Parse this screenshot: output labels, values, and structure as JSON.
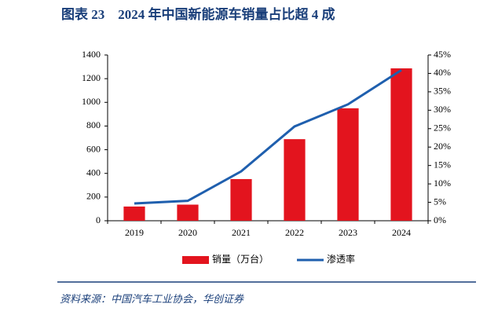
{
  "chart_data": {
    "type": "bar",
    "title": "图表 23　2024 年中国新能源车销量占比超 4 成",
    "source": "资料来源：中国汽车工业协会，华创证券",
    "categories": [
      "2019",
      "2020",
      "2021",
      "2022",
      "2023",
      "2024"
    ],
    "series": [
      {
        "name": "销量（万台）",
        "color": "#e3141e",
        "values": [
          120,
          136,
          352,
          689,
          950,
          1287
        ]
      },
      {
        "name": "渗透率",
        "color": "#1f5fae",
        "type": "line",
        "axis": "y2",
        "values": [
          4.7,
          5.4,
          13.4,
          25.6,
          31.6,
          40.9
        ]
      }
    ],
    "ylim": [
      0,
      1400
    ],
    "yticks": [
      0,
      200,
      400,
      600,
      800,
      1000,
      1200,
      1400
    ],
    "y2lim": [
      0,
      45
    ],
    "y2ticks": [
      {
        "value": 0,
        "label": "0%"
      },
      {
        "value": 5,
        "label": "5%"
      },
      {
        "value": 10,
        "label": "10%"
      },
      {
        "value": 15,
        "label": "15%"
      },
      {
        "value": 20,
        "label": "20%"
      },
      {
        "value": 25,
        "label": "25%"
      },
      {
        "value": 30,
        "label": "30%"
      },
      {
        "value": 35,
        "label": "35%"
      },
      {
        "value": 40,
        "label": "40%"
      },
      {
        "value": 45,
        "label": "45%"
      }
    ]
  }
}
